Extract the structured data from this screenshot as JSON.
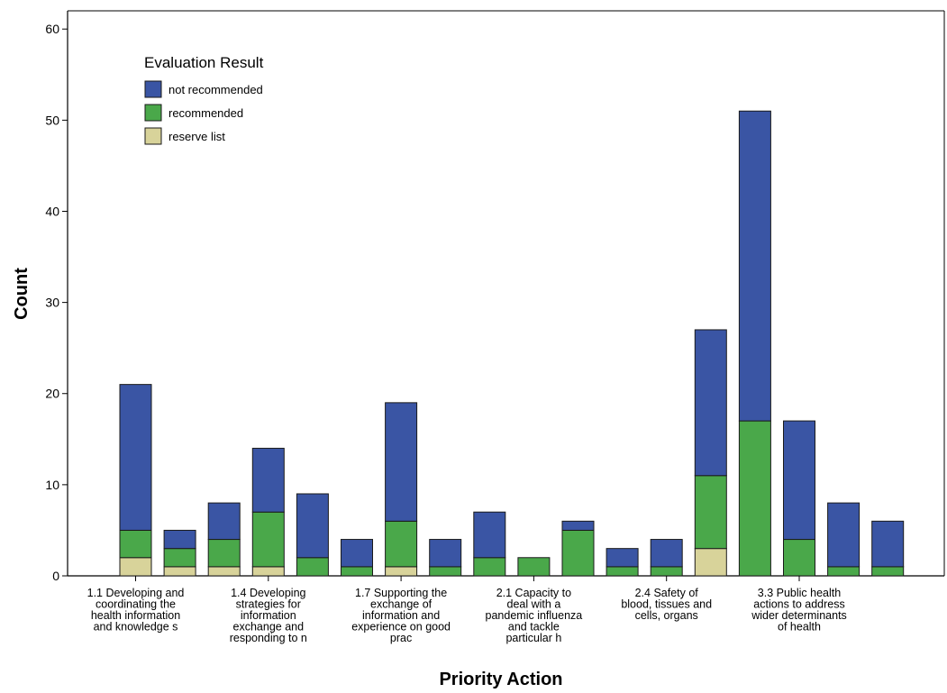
{
  "chart_data": {
    "type": "bar",
    "stacked": true,
    "xlabel": "Priority Action",
    "ylabel": "Count",
    "ylim": [
      0,
      62
    ],
    "yticks": [
      0,
      10,
      20,
      30,
      40,
      50,
      60
    ],
    "grid": false,
    "legend": {
      "title": "Evaluation Result",
      "placement": "top-left"
    },
    "category_labels": [
      {
        "text": "1.1 Developing and coordinating the health information and knowledge s",
        "lines": [
          "1.1 Developing and",
          "coordinating the",
          "health information",
          "and knowledge s"
        ],
        "bar_index": 0
      },
      {
        "text": "1.4 Developing strategies for information exchange and responding to n",
        "lines": [
          "1.4 Developing",
          "strategies for",
          "information",
          "exchange and",
          "responding to n"
        ],
        "bar_index": 3
      },
      {
        "text": "1.7 Supporting the exchange of information and experience on good prac",
        "lines": [
          "1.7 Supporting the",
          "exchange of",
          "information and",
          "experience on good",
          "prac"
        ],
        "bar_index": 6
      },
      {
        "text": "2.1 Capacity to deal with a pandemic influenza and tackle particular h",
        "lines": [
          "2.1 Capacity to",
          "deal with a",
          "pandemic influenza",
          "and tackle",
          "particular h"
        ],
        "bar_index": 9
      },
      {
        "text": "2.4 Safety of blood, tissues and cells, organs",
        "lines": [
          "2.4 Safety of",
          "blood, tissues and",
          "cells, organs"
        ],
        "bar_index": 12
      },
      {
        "text": "3.3 Public health actions to address wider determinants of health",
        "lines": [
          "3.3 Public health",
          "actions to address",
          "wider determinants",
          "of health"
        ],
        "bar_index": 15
      }
    ],
    "series": [
      {
        "name": "reserve list",
        "color": "#d8d39a",
        "values": [
          2,
          1,
          1,
          1,
          0,
          0,
          1,
          0,
          0,
          0,
          0,
          0,
          0,
          3,
          0,
          0,
          0,
          0
        ]
      },
      {
        "name": "recommended",
        "color": "#4aa84a",
        "values": [
          3,
          2,
          3,
          6,
          2,
          1,
          5,
          1,
          2,
          2,
          5,
          1,
          1,
          8,
          17,
          4,
          1,
          1
        ]
      },
      {
        "name": "not recommended",
        "color": "#3a55a4",
        "values": [
          16,
          2,
          4,
          7,
          7,
          3,
          13,
          3,
          5,
          0,
          1,
          2,
          3,
          16,
          34,
          13,
          7,
          5
        ]
      }
    ],
    "legend_order": [
      "not recommended",
      "recommended",
      "reserve list"
    ]
  }
}
